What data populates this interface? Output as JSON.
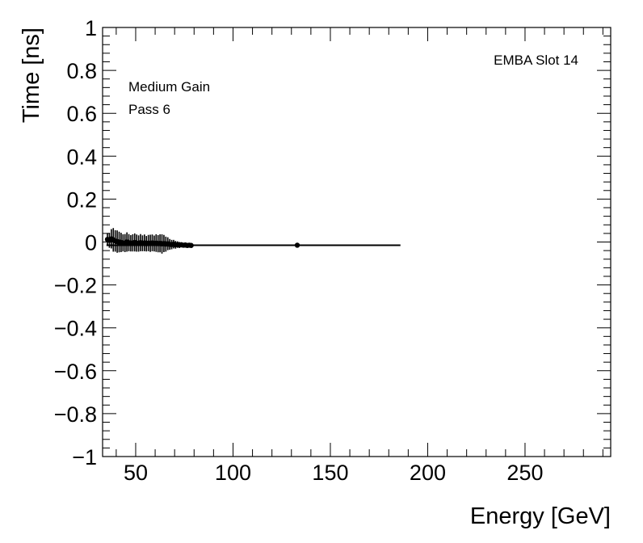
{
  "chart_data": {
    "type": "scatter",
    "title": "",
    "xlabel": "Energy [GeV]",
    "ylabel": "Time [ns]",
    "xlim": [
      33,
      294
    ],
    "ylim": [
      -1,
      1
    ],
    "x_major_ticks": [
      50,
      100,
      150,
      200,
      250
    ],
    "x_tick_labels": [
      "50",
      "100",
      "150",
      "200",
      "250"
    ],
    "y_major_ticks": [
      -1,
      -0.8,
      -0.6,
      -0.4,
      -0.2,
      0,
      0.2,
      0.4,
      0.6,
      0.8,
      1
    ],
    "y_tick_labels": [
      "−1",
      "−0.8",
      "−0.6",
      "−0.4",
      "−0.2",
      "0",
      "0.2",
      "0.4",
      "0.6",
      "0.8",
      "1"
    ],
    "annotations": {
      "top_right": "EMBA Slot 14",
      "gain": "Medium Gain",
      "pass": "Pass 6"
    },
    "fit_line": {
      "x": [
        35,
        186
      ],
      "y": [
        -0.015,
        -0.015
      ]
    },
    "points": [
      {
        "x": 35.5,
        "y": 0.012,
        "err": 0.03
      },
      {
        "x": 36.5,
        "y": 0.008,
        "err": 0.035
      },
      {
        "x": 37.5,
        "y": 0.015,
        "err": 0.045
      },
      {
        "x": 38.5,
        "y": 0.01,
        "err": 0.055
      },
      {
        "x": 39.5,
        "y": 0.005,
        "err": 0.05
      },
      {
        "x": 40.5,
        "y": 0.002,
        "err": 0.052
      },
      {
        "x": 41.5,
        "y": 0.0,
        "err": 0.048
      },
      {
        "x": 42.5,
        "y": -0.002,
        "err": 0.045
      },
      {
        "x": 43.5,
        "y": -0.004,
        "err": 0.04
      },
      {
        "x": 44.5,
        "y": -0.005,
        "err": 0.042
      },
      {
        "x": 45.5,
        "y": 0.0,
        "err": 0.045
      },
      {
        "x": 46.5,
        "y": -0.003,
        "err": 0.04
      },
      {
        "x": 47.5,
        "y": -0.006,
        "err": 0.038
      },
      {
        "x": 48.5,
        "y": -0.004,
        "err": 0.04
      },
      {
        "x": 49.5,
        "y": -0.002,
        "err": 0.042
      },
      {
        "x": 50.5,
        "y": -0.005,
        "err": 0.04
      },
      {
        "x": 51.5,
        "y": -0.007,
        "err": 0.038
      },
      {
        "x": 52.5,
        "y": -0.003,
        "err": 0.04
      },
      {
        "x": 53.5,
        "y": -0.006,
        "err": 0.037
      },
      {
        "x": 54.5,
        "y": -0.004,
        "err": 0.039
      },
      {
        "x": 55.5,
        "y": -0.008,
        "err": 0.036
      },
      {
        "x": 56.5,
        "y": -0.005,
        "err": 0.038
      },
      {
        "x": 57.5,
        "y": -0.006,
        "err": 0.04
      },
      {
        "x": 58.5,
        "y": -0.004,
        "err": 0.039
      },
      {
        "x": 59.5,
        "y": -0.007,
        "err": 0.037
      },
      {
        "x": 60.5,
        "y": -0.005,
        "err": 0.041
      },
      {
        "x": 61.5,
        "y": -0.008,
        "err": 0.04
      },
      {
        "x": 62.5,
        "y": -0.006,
        "err": 0.042
      },
      {
        "x": 63.5,
        "y": -0.009,
        "err": 0.045
      },
      {
        "x": 64.5,
        "y": -0.007,
        "err": 0.04
      },
      {
        "x": 65.5,
        "y": -0.01,
        "err": 0.035
      },
      {
        "x": 66.5,
        "y": -0.008,
        "err": 0.03
      },
      {
        "x": 67.5,
        "y": -0.011,
        "err": 0.025
      },
      {
        "x": 68.5,
        "y": -0.012,
        "err": 0.022
      },
      {
        "x": 69.5,
        "y": -0.01,
        "err": 0.02
      },
      {
        "x": 70.5,
        "y": -0.013,
        "err": 0.018
      },
      {
        "x": 71.5,
        "y": -0.012,
        "err": 0.015
      },
      {
        "x": 72.5,
        "y": -0.014,
        "err": 0.014
      },
      {
        "x": 73.5,
        "y": -0.013,
        "err": 0.012
      },
      {
        "x": 74.5,
        "y": -0.015,
        "err": 0.01
      },
      {
        "x": 75.5,
        "y": -0.014,
        "err": 0.012
      },
      {
        "x": 76.5,
        "y": -0.016,
        "err": 0.01
      },
      {
        "x": 77.5,
        "y": -0.015,
        "err": 0.01
      },
      {
        "x": 78.5,
        "y": -0.016,
        "err": 0.008
      },
      {
        "x": 133,
        "y": -0.015,
        "err": 0.005
      }
    ]
  }
}
